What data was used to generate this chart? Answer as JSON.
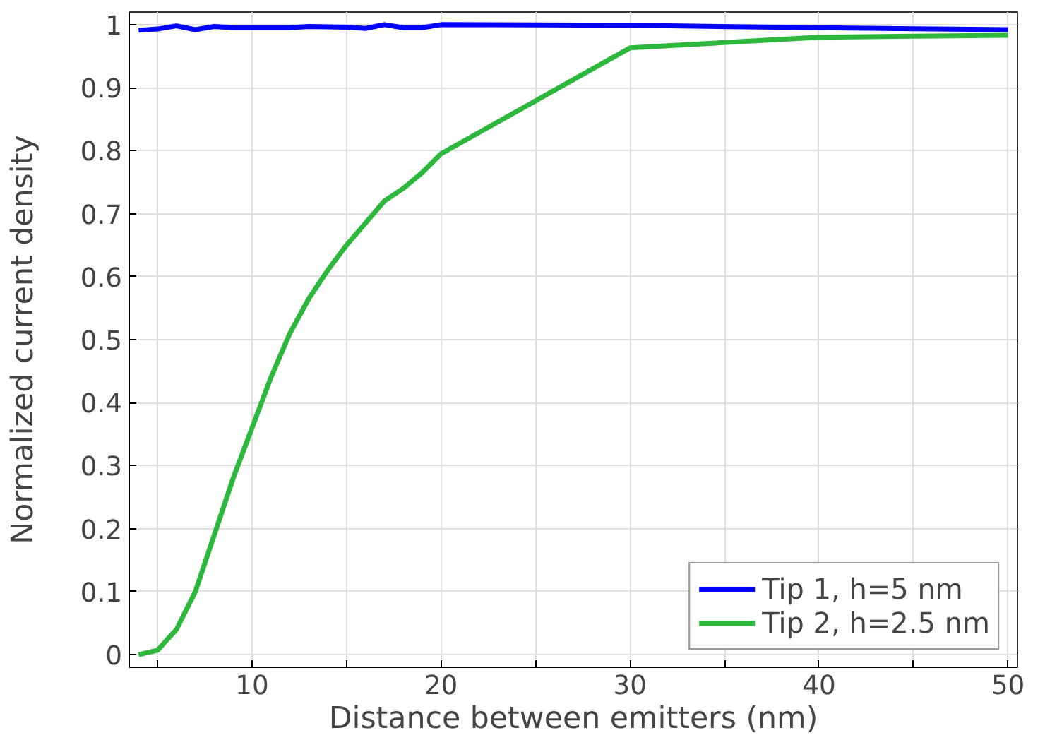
{
  "chart_data": {
    "type": "line",
    "xlabel": "Distance between emitters (nm)",
    "ylabel": "Normalized current density",
    "xlim": [
      3.5,
      50.5
    ],
    "ylim": [
      -0.02,
      1.02
    ],
    "xticks": [
      {
        "value": 5,
        "label": null
      },
      10,
      {
        "value": 15,
        "label": null
      },
      20,
      {
        "value": 25,
        "label": null
      },
      30,
      {
        "value": 35,
        "label": null
      },
      40,
      {
        "value": 45,
        "label": null
      },
      50
    ],
    "yticks": [
      0,
      0.1,
      0.2,
      0.3,
      0.4,
      0.5,
      0.6,
      0.7,
      0.8,
      0.9,
      1
    ],
    "grid": true,
    "legend": "bottom right",
    "marker": "none",
    "line_style": "solid",
    "series": [
      {
        "name": "Tip 1, h=5 nm",
        "color": "#0000ff",
        "x": [
          4,
          5,
          6,
          7,
          8,
          9,
          10,
          12,
          13,
          15,
          16,
          17,
          18,
          19,
          20,
          30,
          40,
          50
        ],
        "values": [
          0.991,
          0.993,
          0.998,
          0.992,
          0.997,
          0.995,
          0.995,
          0.995,
          0.997,
          0.996,
          0.994,
          1.0,
          0.995,
          0.995,
          1.0,
          0.999,
          0.995,
          0.992
        ]
      },
      {
        "name": "Tip 2, h=2.5 nm",
        "color": "#2db83d",
        "x": [
          4,
          5,
          6,
          7,
          8,
          9,
          10,
          11,
          12,
          13,
          14,
          15,
          16,
          17,
          18,
          19,
          20,
          30,
          40,
          50
        ],
        "values": [
          0.0,
          0.007,
          0.04,
          0.1,
          0.19,
          0.28,
          0.36,
          0.44,
          0.51,
          0.565,
          0.61,
          0.65,
          0.685,
          0.72,
          0.74,
          0.765,
          0.795,
          0.963,
          0.98,
          0.983
        ]
      }
    ]
  }
}
